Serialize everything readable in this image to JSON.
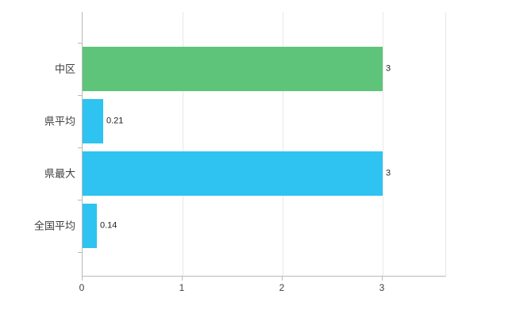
{
  "chart_data": {
    "type": "bar",
    "orientation": "horizontal",
    "title": "",
    "xlabel": "",
    "ylabel": "",
    "legend": "none",
    "grid": "vertical",
    "categories": [
      "中区",
      "県平均",
      "県最大",
      "全国平均"
    ],
    "values": [
      3,
      0.21,
      3,
      0.14
    ],
    "value_labels": [
      "3",
      "0.21",
      "3",
      "0.14"
    ],
    "bar_colors": [
      "#5dc47a",
      "#2ec3f0",
      "#2ec3f0",
      "#2ec3f0"
    ],
    "x_ticks": [
      "0",
      "1",
      "2",
      "3"
    ],
    "x_tick_values": [
      0,
      1,
      2,
      3
    ],
    "xlim": [
      0,
      3.63
    ]
  },
  "style": {
    "background": "#ffffff",
    "grid_color": "#e8e8e8",
    "axis_color": "#b9b9b9",
    "label_color": "#3f3f3f",
    "green_bar": "#5dc47a",
    "blue_bar": "#2ec3f0"
  }
}
